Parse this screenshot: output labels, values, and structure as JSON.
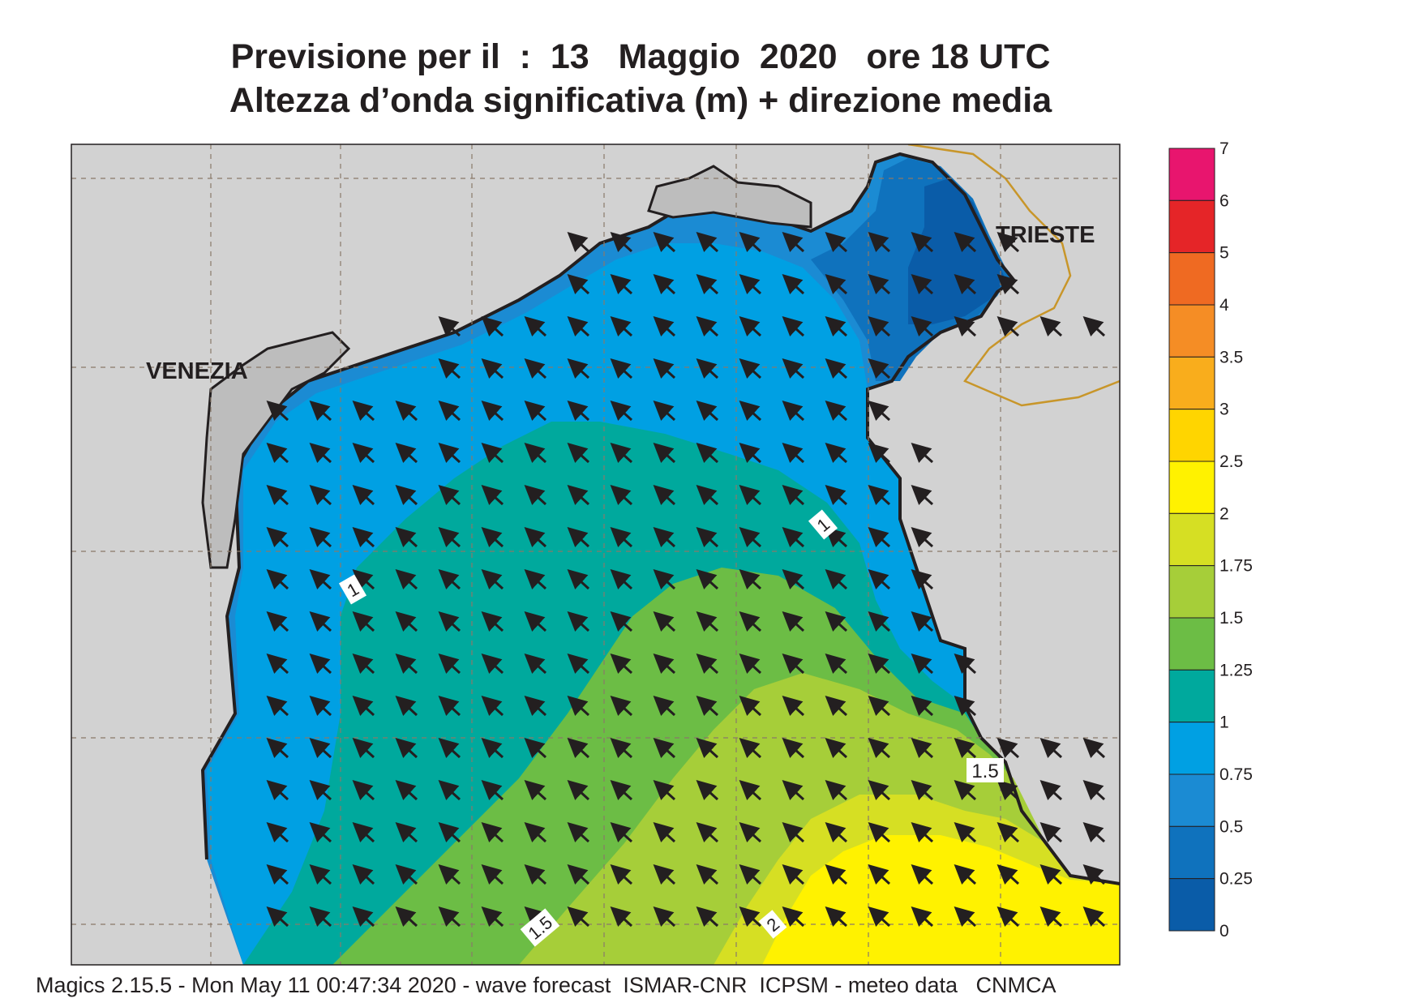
{
  "title": {
    "line1": "Previsione per il  :  13   Maggio  2020   ore 18 UTC",
    "line2": "Altezza d’onda significativa (m) + direzione media"
  },
  "map": {
    "cities": {
      "venezia": "VENEZIA",
      "trieste": "TRIESTE"
    },
    "contour_labels": [
      "1",
      "1",
      "1.5",
      "1.5",
      "2"
    ],
    "land_color": "#d2d2d2",
    "coast_color": "#231f20",
    "border_color": "#c8962a",
    "arrow_direction": "NW"
  },
  "colorbar": {
    "levels": [
      "7",
      "6",
      "5",
      "4",
      "3.5",
      "3",
      "2.5",
      "2",
      "1.75",
      "1.5",
      "1.25",
      "1",
      "0.75",
      "0.5",
      "0.25",
      "0"
    ],
    "colors": [
      "#e8156e",
      "#e52528",
      "#ef6a22",
      "#f58d25",
      "#f9ad1c",
      "#ffd500",
      "#fff200",
      "#d6df23",
      "#a6ce39",
      "#6cbd45",
      "#00a99d",
      "#00a0e3",
      "#1b8bd3",
      "#0f72bd",
      "#0a5ca8"
    ]
  },
  "footer": "Magics 2.15.5 - Mon May 11 00:47:34 2020 - wave forecast  ISMAR-CNR  ICPSM - meteo data   CNMCA"
}
